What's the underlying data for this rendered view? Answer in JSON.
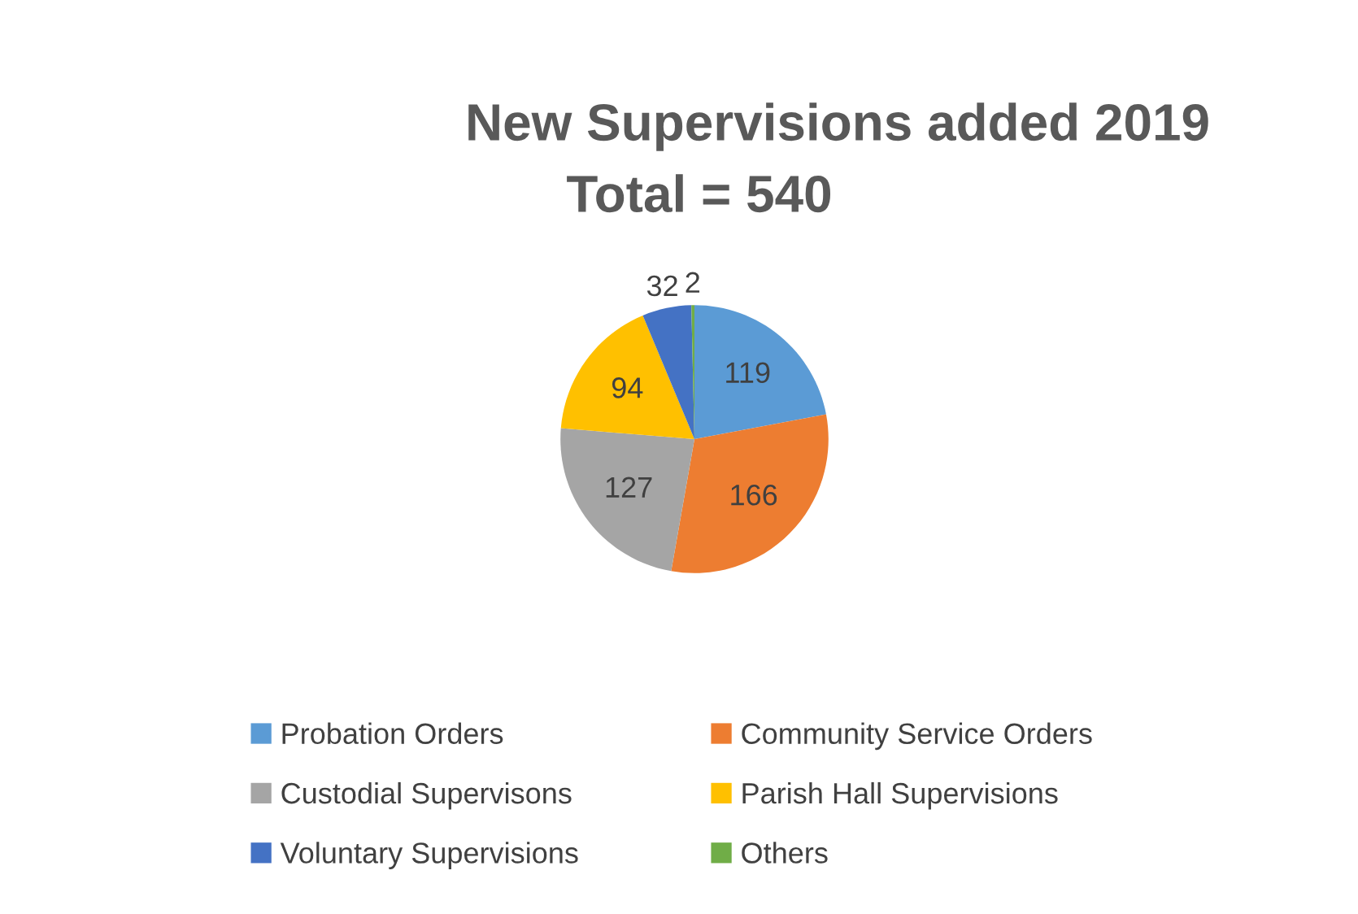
{
  "chart_data": {
    "type": "pie",
    "title": "New Supervisions added 2019",
    "subtitle": "Total = 540",
    "categories": [
      "Probation Orders",
      "Community Service Orders",
      "Custodial Supervisons",
      "Parish Hall Supervisions",
      "Voluntary Supervisions",
      "Others"
    ],
    "values": [
      119,
      166,
      127,
      94,
      32,
      2
    ],
    "colors": [
      "#5b9bd5",
      "#ed7d31",
      "#a5a5a5",
      "#ffc000",
      "#4472c4",
      "#70ad47"
    ],
    "data_labels": true,
    "legend": "bottom"
  }
}
